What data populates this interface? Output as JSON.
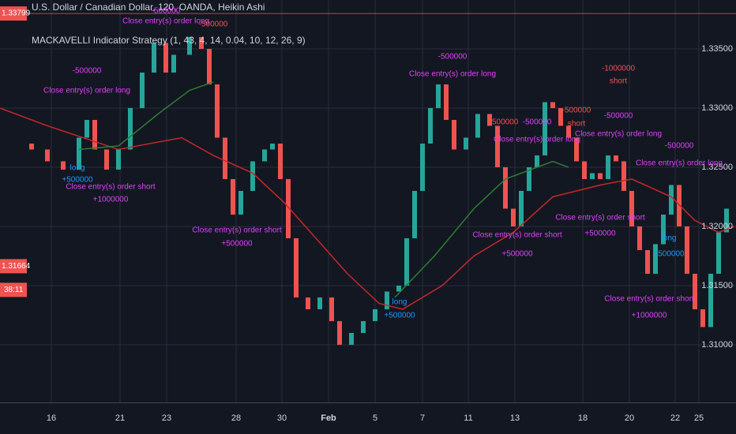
{
  "chart_data": {
    "type": "candlestick",
    "title": "U.S. Dollar / Canadian Dollar, 120, OANDA, Heikin Ashi",
    "subtitle": "MACKAVELLI Indicator Strategy (1, 43, 4, 14, 0.04, 10, 12, 26, 9)",
    "up_color": "#26a69a",
    "down_color": "#ef5350",
    "x": [
      4,
      6,
      8,
      10,
      11,
      12,
      13.5,
      15,
      16.5,
      18,
      19.5,
      21,
      22,
      24,
      25.5,
      26.5,
      27.5,
      28.5,
      29.5,
      30.5,
      32,
      33.5,
      34.5,
      35.5,
      36.5,
      37.5,
      39,
      40.5,
      42,
      43,
      44.5,
      46,
      47.5,
      49,
      50.5,
      51.5,
      52.5,
      53.5,
      54.5,
      55.5,
      56.5,
      57.5,
      59,
      60.5,
      62,
      63,
      64,
      65,
      66,
      67,
      68,
      69,
      70,
      71,
      72,
      73,
      74,
      75,
      76,
      77,
      78,
      79,
      80,
      81,
      82,
      83,
      84,
      85,
      86,
      87,
      88,
      89,
      90,
      91,
      92
    ],
    "open": [
      1.327,
      1.3265,
      1.3255,
      1.3248,
      1.3275,
      1.329,
      1.3265,
      1.3248,
      1.3265,
      1.33,
      1.333,
      1.3355,
      1.333,
      1.3345,
      1.336,
      1.335,
      1.332,
      1.3275,
      1.324,
      1.321,
      1.323,
      1.3255,
      1.3265,
      1.327,
      1.324,
      1.319,
      1.314,
      1.313,
      1.314,
      1.312,
      1.31,
      1.311,
      1.312,
      1.313,
      1.3145,
      1.315,
      1.319,
      1.323,
      1.327,
      1.33,
      1.332,
      1.329,
      1.3265,
      1.3275,
      1.3295,
      1.3285,
      1.325,
      1.3215,
      1.32,
      1.323,
      1.325,
      1.326,
      1.3305,
      1.33,
      1.3285,
      1.3275,
      1.3255,
      1.324,
      1.3245,
      1.324,
      1.326,
      1.3255,
      1.323,
      1.32,
      1.318,
      1.316,
      1.3185,
      1.321,
      1.3235,
      1.32,
      1.316,
      1.313,
      1.3115,
      1.316,
      1.3195
    ],
    "close": [
      1.3265,
      1.3255,
      1.3248,
      1.3275,
      1.329,
      1.3265,
      1.3248,
      1.3265,
      1.33,
      1.333,
      1.3355,
      1.333,
      1.3345,
      1.336,
      1.335,
      1.332,
      1.3275,
      1.324,
      1.321,
      1.323,
      1.3255,
      1.3265,
      1.327,
      1.324,
      1.319,
      1.314,
      1.313,
      1.314,
      1.312,
      1.31,
      1.311,
      1.312,
      1.313,
      1.3145,
      1.315,
      1.319,
      1.323,
      1.327,
      1.33,
      1.332,
      1.329,
      1.3265,
      1.3275,
      1.3295,
      1.3285,
      1.325,
      1.3215,
      1.32,
      1.323,
      1.325,
      1.326,
      1.3305,
      1.33,
      1.3285,
      1.3275,
      1.3255,
      1.324,
      1.3245,
      1.324,
      1.326,
      1.3255,
      1.323,
      1.32,
      1.318,
      1.316,
      1.3185,
      1.321,
      1.3235,
      1.32,
      1.316,
      1.313,
      1.3115,
      1.316,
      1.3195,
      1.3215
    ],
    "lines": [
      {
        "color": "#c62828",
        "x": [
          0,
          6,
          15,
          23,
          27,
          32,
          36,
          40,
          44,
          48,
          51,
          56,
          60,
          65,
          70,
          76,
          80,
          85,
          88,
          91,
          93
        ],
        "values": [
          1.33,
          1.3285,
          1.3265,
          1.3275,
          1.326,
          1.3245,
          1.322,
          1.319,
          1.316,
          1.3135,
          1.313,
          1.315,
          1.3175,
          1.3195,
          1.3225,
          1.3235,
          1.324,
          1.3225,
          1.3205,
          1.3195,
          1.32
        ]
      },
      {
        "color": "#2e7d32",
        "x": [
          10,
          15,
          20,
          24,
          27
        ],
        "values": [
          1.3265,
          1.3268,
          1.3295,
          1.3315,
          1.3322
        ]
      },
      {
        "color": "#2e7d32",
        "x": [
          50,
          55,
          60,
          64,
          70,
          72
        ],
        "values": [
          1.314,
          1.3175,
          1.3215,
          1.324,
          1.3255,
          1.325
        ]
      }
    ],
    "xlim": [
      0,
      93.2
    ],
    "ylim": [
      1.30513,
      1.33913
    ],
    "yticks": [
      {
        "value": 1.31,
        "label": "1.31000"
      },
      {
        "value": 1.315,
        "label": "1.31500"
      },
      {
        "value": 1.32,
        "label": "1.32000"
      },
      {
        "value": 1.325,
        "label": "1.32500"
      },
      {
        "value": 1.33,
        "label": "1.33000"
      },
      {
        "value": 1.335,
        "label": "1.33500"
      }
    ],
    "xticks": [
      {
        "value": 6.5,
        "label": "16"
      },
      {
        "value": 15.2,
        "label": "21"
      },
      {
        "value": 21.1,
        "label": "23"
      },
      {
        "value": 29.9,
        "label": "28"
      },
      {
        "value": 35.7,
        "label": "30"
      },
      {
        "value": 41.6,
        "label": "Feb"
      },
      {
        "value": 47.5,
        "label": "5"
      },
      {
        "value": 53.5,
        "label": "7"
      },
      {
        "value": 59.3,
        "label": "11"
      },
      {
        "value": 65.2,
        "label": "13"
      },
      {
        "value": 73.8,
        "label": "18"
      },
      {
        "value": 79.7,
        "label": "20"
      },
      {
        "value": 85.5,
        "label": "22"
      },
      {
        "value": 88.5,
        "label": "25"
      }
    ],
    "price_labels": [
      {
        "value": 1.33799,
        "label": "1.33799"
      },
      {
        "value": 1.31664,
        "label": "1.31664"
      }
    ],
    "countdown": "38:11",
    "grid": true,
    "annotations": [
      {
        "text": "-500000",
        "x": 11,
        "y": 1.33313,
        "color": "#e040fb"
      },
      {
        "text": "Close entry(s) order long",
        "x": 11,
        "y": 1.33147,
        "color": "#e040fb"
      },
      {
        "text": "long",
        "x": 9.8,
        "y": 1.32493,
        "color": "#2196f3"
      },
      {
        "text": "+500000",
        "x": 9.8,
        "y": 1.32393,
        "color": "#2196f3"
      },
      {
        "text": "Close entry(s) order short",
        "x": 14,
        "y": 1.32333,
        "color": "#e040fb"
      },
      {
        "text": "+1000000",
        "x": 14,
        "y": 1.32227,
        "color": "#e040fb"
      },
      {
        "text": "-500000",
        "x": 21,
        "y": 1.3382,
        "color": "#e040fb"
      },
      {
        "text": "Close entry(s) order long",
        "x": 21,
        "y": 1.33733,
        "color": "#e040fb"
      },
      {
        "text": "-500000",
        "x": 27,
        "y": 1.33707,
        "color": "#ef5350"
      },
      {
        "text": "Close entry(s) order short",
        "x": 30,
        "y": 1.31967,
        "color": "#e040fb"
      },
      {
        "text": "+500000",
        "x": 30,
        "y": 1.31853,
        "color": "#e040fb"
      },
      {
        "text": "long",
        "x": 50.6,
        "y": 1.3136,
        "color": "#2196f3"
      },
      {
        "text": "+500000",
        "x": 50.6,
        "y": 1.31247,
        "color": "#2196f3"
      },
      {
        "text": "-500000",
        "x": 57.3,
        "y": 1.33433,
        "color": "#e040fb"
      },
      {
        "text": "Close entry(s) order long",
        "x": 57.3,
        "y": 1.33287,
        "color": "#e040fb"
      },
      {
        "text": "-500000",
        "x": 63.8,
        "y": 1.3288,
        "color": "#ef5350"
      },
      {
        "text": "Close entry(s) order short",
        "x": 65.5,
        "y": 1.31927,
        "color": "#e040fb"
      },
      {
        "text": "+500000",
        "x": 65.5,
        "y": 1.31767,
        "color": "#e040fb"
      },
      {
        "text": "-500000",
        "x": 68,
        "y": 1.3288,
        "color": "#e040fb"
      },
      {
        "text": "Close entry(s) order long",
        "x": 68,
        "y": 1.32733,
        "color": "#e040fb"
      },
      {
        "text": "-500000",
        "x": 73,
        "y": 1.3298,
        "color": "#ef5350"
      },
      {
        "text": "short",
        "x": 73,
        "y": 1.32867,
        "color": "#ef5350"
      },
      {
        "text": "-1000000",
        "x": 78.3,
        "y": 1.33333,
        "color": "#ef5350"
      },
      {
        "text": "short",
        "x": 78.3,
        "y": 1.33227,
        "color": "#ef5350"
      },
      {
        "text": "-500000",
        "x": 78.3,
        "y": 1.32933,
        "color": "#e040fb"
      },
      {
        "text": "Close entry(s) order long",
        "x": 78.3,
        "y": 1.3278,
        "color": "#e040fb"
      },
      {
        "text": "Close entry(s) order short",
        "x": 76,
        "y": 1.32073,
        "color": "#e040fb"
      },
      {
        "text": "+500000",
        "x": 76,
        "y": 1.3194,
        "color": "#e040fb"
      },
      {
        "text": "-500000",
        "x": 86,
        "y": 1.3268,
        "color": "#e040fb"
      },
      {
        "text": "Close entry(s) order long",
        "x": 86,
        "y": 1.32533,
        "color": "#e040fb"
      },
      {
        "text": "long",
        "x": 84.7,
        "y": 1.319,
        "color": "#2196f3"
      },
      {
        "text": "+500000",
        "x": 84.7,
        "y": 1.31767,
        "color": "#2196f3"
      },
      {
        "text": "Close entry(s) order short",
        "x": 82.2,
        "y": 1.31387,
        "color": "#e040fb"
      },
      {
        "text": "+1000000",
        "x": 82.2,
        "y": 1.31247,
        "color": "#e040fb"
      }
    ]
  }
}
